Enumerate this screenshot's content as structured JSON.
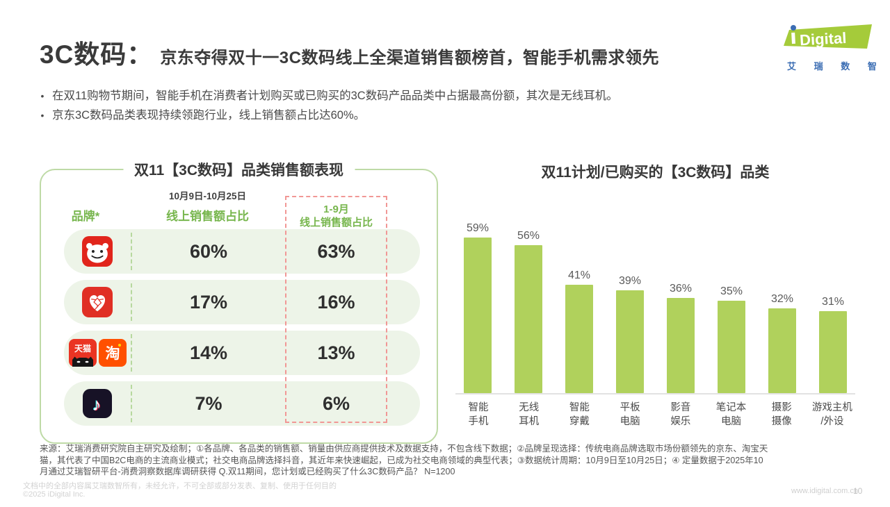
{
  "header": {
    "title_prefix": "3C数码：",
    "title_rest": "京东夺得双十一3C数码线上全渠道销售额榜首，智能手机需求领先",
    "bullet_glyph": "•",
    "bullets": [
      "在双11购物节期间，智能手机在消费者计划购买或已购买的3C数码产品品类中占据最高份额，其次是无线耳机。",
      "京东3C数码品类表现持续领跑行业，线上销售额占比达60%。"
    ],
    "logo": {
      "word": "Digital",
      "cn": "艾 瑞 数 智",
      "green": "#a5cb3a",
      "blue": "#3b6db3"
    }
  },
  "left_panel": {
    "title": "双11【3C数码】品类销售额表现",
    "date_range": "10月9日-10月25日",
    "col_brand": "品牌*",
    "col_online": "线上销售额占比",
    "col_prev_line1": "1-9月",
    "col_prev_line2": "线上销售额占比",
    "rows": [
      {
        "logo": "jd-logo",
        "online_share": "60%",
        "jan_sep_share": "63%"
      },
      {
        "logo": "pinduoduo-logo",
        "online_share": "17%",
        "jan_sep_share": "16%"
      },
      {
        "logo": "tmall-taobao-logo",
        "tmall_text": "天猫",
        "taobao_text": "淘",
        "online_share": "14%",
        "jan_sep_share": "13%"
      },
      {
        "logo": "douyin-logo",
        "online_share": "7%",
        "jan_sep_share": "6%"
      }
    ]
  },
  "right_chart": {
    "title": "双11计划/已购买的【3C数码】品类"
  },
  "chart_data": [
    {
      "type": "table",
      "title": "双11【3C数码】品类销售额表现",
      "columns": [
        "品牌*",
        "线上销售额占比（10月9日-10月25日）",
        "1-9月 线上销售额占比"
      ],
      "rows": [
        {
          "brand_logo": "jd-logo",
          "values": [
            "60%",
            "63%"
          ]
        },
        {
          "brand_logo": "pinduoduo-logo",
          "values": [
            "17%",
            "16%"
          ]
        },
        {
          "brand_logo": "tmall-taobao-logo",
          "values": [
            "14%",
            "13%"
          ]
        },
        {
          "brand_logo": "douyin-logo",
          "values": [
            "7%",
            "6%"
          ]
        }
      ]
    },
    {
      "type": "bar",
      "title": "双11计划/已购买的【3C数码】品类",
      "categories": [
        "智能\n手机",
        "无线\n耳机",
        "智能\n穿戴",
        "平板\n电脑",
        "影音\n娱乐",
        "笔记本\n电脑",
        "摄影\n摄像",
        "游戏主机\n/外设"
      ],
      "values": [
        59,
        56,
        41,
        39,
        36,
        35,
        32,
        31
      ],
      "unit": "%",
      "bar_color": "#b0d15c",
      "ylim": [
        0,
        65
      ],
      "grid": false,
      "legend": "none"
    }
  ],
  "footer": {
    "notes": [
      "来源：艾瑞消费研究院自主研究及绘制；①各品牌、各品类的销售额、销量由供应商提供技术及数据支持，不包含线下数据；②品牌呈现选择：传统电商品牌选取市场份额领先的京东、淘宝天",
      "猫，其代表了中国B2C电商的主流商业模式；社交电商品牌选择抖音，其近年来快速崛起，已成为社交电商领域的典型代表；③数据统计周期：10月9日至10月25日；④ 定量数据于2025年10",
      "月通过艾瑞智研平台-消费洞察数据库调研获得 Q.双11期间，您计划或已经购买了什么3C数码产品？ N=1200"
    ],
    "disclaimer": "文档中的全部内容属艾瑞数智所有，未经允许，不可全部或部分发表、复制、使用于任何目的",
    "copyright": "©2025 iDigital Inc.",
    "website": "www.idigital.com.cn",
    "page_number": "10"
  }
}
